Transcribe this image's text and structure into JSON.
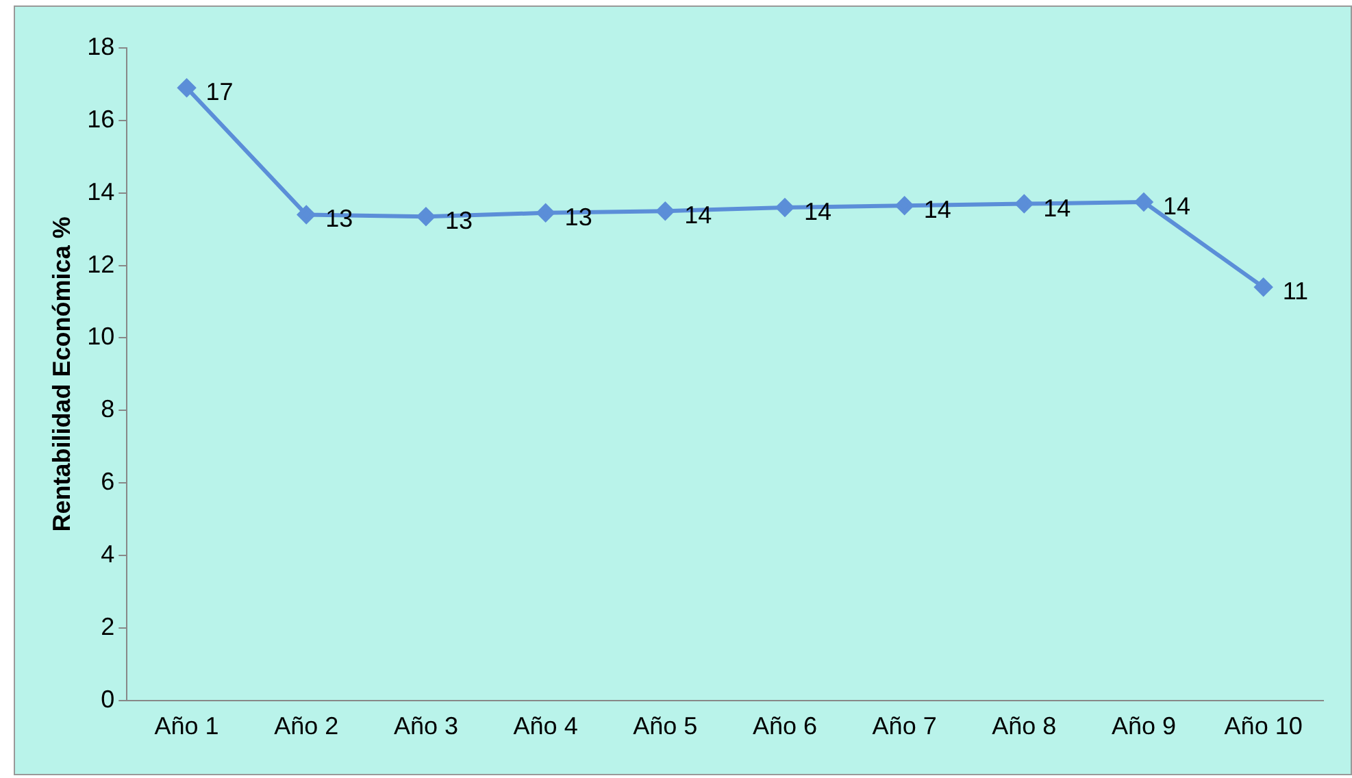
{
  "chart_data": {
    "type": "line",
    "ylabel": "Rentabilidad Económica %",
    "categories": [
      "Año 1",
      "Año 2",
      "Año 3",
      "Año 4",
      "Año 5",
      "Año 6",
      "Año 7",
      "Año 8",
      "Año 9",
      "Año 10"
    ],
    "series": [
      {
        "color": "#5b8ed8",
        "values": [
          16.9,
          13.4,
          13.35,
          13.45,
          13.5,
          13.6,
          13.65,
          13.7,
          13.75,
          11.4
        ],
        "value_labels": [
          "17",
          "13",
          "13",
          "13",
          "14",
          "14",
          "14",
          "14",
          "14",
          "11"
        ]
      }
    ],
    "ylim": [
      0,
      18
    ],
    "yticks": [
      0,
      2,
      4,
      6,
      8,
      10,
      12,
      14,
      16,
      18
    ],
    "grid": false,
    "legend": false,
    "marker": "diamond",
    "line_style": "solid"
  }
}
